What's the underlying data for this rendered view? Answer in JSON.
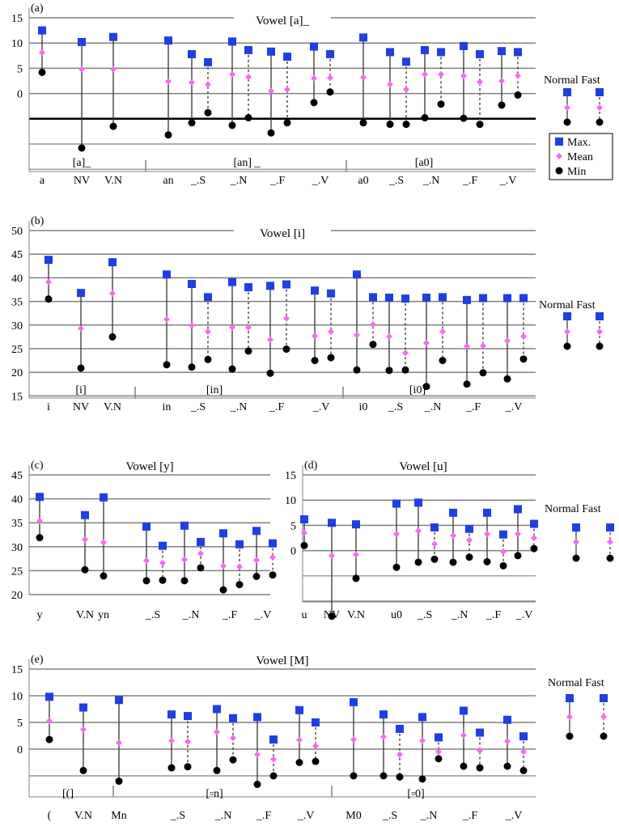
{
  "chart_data": [
    {
      "type": "range",
      "panel_label": "(a)",
      "title": "Vowel [a]_",
      "ylim": [
        -15,
        15
      ],
      "yticks": [
        15,
        10,
        5,
        0
      ],
      "categories": [
        "a",
        "NV",
        "V.N",
        "an",
        "_.S",
        "_.N",
        "_.F",
        "_.V",
        "a0",
        "_.S",
        "_.N",
        "_.F",
        "_.V"
      ],
      "group_labels": [
        "[a]_",
        "[an] _",
        "[a0]"
      ],
      "series": [
        {
          "name": "Normal",
          "max": [
            12.5,
            10.2,
            11.2,
            10.5,
            7.8,
            10.3,
            8.3,
            9.3,
            11.1,
            8.2,
            8.6,
            9.4,
            8.4
          ],
          "mean": [
            8.1,
            4.8,
            4.8,
            2.4,
            2.2,
            3.8,
            0.5,
            3.0,
            3.2,
            1.8,
            3.8,
            3.5,
            2.5
          ],
          "min": [
            4.2,
            -10.8,
            -6.5,
            -8.2,
            -5.8,
            -6.3,
            -7.8,
            -1.8,
            -5.8,
            -6.1,
            -4.8,
            -4.9,
            -2.3
          ]
        },
        {
          "name": "Fast",
          "max": [
            null,
            null,
            null,
            null,
            6.2,
            8.6,
            7.3,
            7.8,
            null,
            6.3,
            8.2,
            7.8,
            8.2
          ],
          "mean": [
            null,
            null,
            null,
            null,
            1.8,
            3.3,
            0.8,
            3.1,
            null,
            0.8,
            3.8,
            2.3,
            3.5
          ],
          "min": [
            null,
            null,
            null,
            null,
            -3.8,
            -4.8,
            -5.8,
            0.3,
            null,
            -6.1,
            -2.1,
            -6.1,
            -0.3
          ]
        }
      ],
      "legend": {
        "items": [
          "Max.",
          "Mean",
          "Min"
        ],
        "series_labels": [
          "Normal",
          "Fast"
        ],
        "demo": {
          "max": 0.5,
          "mean": -2.7,
          "min": -5.6
        }
      }
    },
    {
      "type": "range",
      "panel_label": "(b)",
      "title": "Vowel [i]",
      "ylim": [
        15,
        50
      ],
      "yticks": [
        50,
        45,
        40,
        35,
        30,
        25,
        20,
        15
      ],
      "categories": [
        "i",
        "NV",
        "V.N",
        "in",
        "_.S",
        "_.N",
        "_.F",
        "_.V",
        "i0",
        "_.S",
        "_.N",
        "_.F",
        "_.V"
      ],
      "group_labels": [
        "[i]",
        "[in]",
        "[i0]"
      ],
      "series": [
        {
          "name": "Normal",
          "max": [
            43.8,
            36.8,
            43.3,
            40.7,
            38.7,
            39.1,
            38.3,
            37.3,
            40.7,
            35.8,
            35.8,
            35.3,
            35.7
          ],
          "mean": [
            39.1,
            29.3,
            36.7,
            31.2,
            29.9,
            29.5,
            26.9,
            27.7,
            27.9,
            27.6,
            26.2,
            25.5,
            26.7
          ],
          "min": [
            35.5,
            20.9,
            27.5,
            21.6,
            21.1,
            20.7,
            19.8,
            22.5,
            20.5,
            20.4,
            17.0,
            17.5,
            18.6
          ]
        },
        {
          "name": "Fast",
          "max": [
            null,
            null,
            null,
            null,
            35.9,
            38.0,
            38.6,
            36.7,
            35.9,
            35.6,
            35.9,
            35.7,
            35.7
          ],
          "mean": [
            null,
            null,
            null,
            null,
            28.6,
            29.5,
            31.4,
            28.6,
            30.1,
            24.1,
            28.6,
            25.6,
            27.6
          ],
          "min": [
            null,
            null,
            null,
            null,
            22.7,
            24.5,
            24.9,
            23.1,
            25.9,
            20.5,
            22.5,
            19.9,
            22.8
          ]
        }
      ],
      "legend": {
        "items": [],
        "series_labels": [
          "Normal",
          "Fast"
        ],
        "demo": {
          "max": 32.6,
          "mean": 29.1,
          "min": 25.9
        }
      }
    },
    {
      "type": "range",
      "panel_label": "(c)",
      "title": "Vowel [y]",
      "ylim": [
        20,
        45
      ],
      "yticks": [
        45,
        40,
        35,
        30,
        25,
        20
      ],
      "categories": [
        "y",
        "V.N",
        "yn",
        "_.S",
        "_.N",
        "_.F",
        "_.V"
      ],
      "group_labels": [],
      "series": [
        {
          "name": "Normal",
          "max": [
            40.4,
            36.6,
            40.3,
            34.2,
            34.4,
            32.8,
            33.3
          ],
          "mean": [
            35.4,
            31.5,
            30.9,
            27.1,
            27.3,
            26.0,
            27.2
          ],
          "min": [
            31.9,
            25.2,
            23.9,
            22.9,
            22.9,
            21.0,
            23.8
          ]
        },
        {
          "name": "Fast",
          "max": [
            null,
            null,
            null,
            30.2,
            31.0,
            30.5,
            30.7
          ],
          "mean": [
            null,
            null,
            null,
            26.6,
            28.6,
            25.8,
            27.8
          ],
          "min": [
            null,
            null,
            null,
            23.0,
            25.6,
            22.1,
            24.1
          ]
        }
      ],
      "legend": null
    },
    {
      "type": "range",
      "panel_label": "(d)",
      "title": "Vowel [u]",
      "ylim": [
        -15,
        15
      ],
      "yticks": [
        15,
        10,
        5,
        0
      ],
      "categories": [
        "u",
        "NV",
        "V.N",
        "u0",
        "_.S",
        "_.N",
        "_.F",
        "_.V"
      ],
      "group_labels": [],
      "series": [
        {
          "name": "Normal",
          "max": [
            6.2,
            5.5,
            5.2,
            9.3,
            9.5,
            7.5,
            7.5,
            8.2
          ],
          "mean": [
            3.5,
            -1.0,
            -0.8,
            3.3,
            3.9,
            3.0,
            3.3,
            3.3
          ],
          "min": [
            1.0,
            -13.0,
            -5.5,
            -3.3,
            -2.3,
            -2.3,
            -2.2,
            -1.0
          ]
        },
        {
          "name": "Fast",
          "max": [
            null,
            null,
            null,
            null,
            4.6,
            4.3,
            3.2,
            5.3
          ],
          "mean": [
            null,
            null,
            null,
            null,
            1.3,
            2.1,
            -0.2,
            2.5
          ],
          "min": [
            null,
            null,
            null,
            null,
            -1.7,
            -1.3,
            -3.0,
            0.4
          ]
        }
      ],
      "legend": {
        "items": [],
        "series_labels": [
          "Normal Fast"
        ],
        "demo": {
          "max": 4.3,
          "mean": 1.3,
          "min": -1.7
        }
      }
    },
    {
      "type": "range",
      "panel_label": "(e)",
      "title": "Vowel [M]",
      "ylim": [
        -15,
        15
      ],
      "yticks": [
        15,
        10,
        5,
        0
      ],
      "categories": [
        "(",
        "V.N",
        "Mn",
        "_.S",
        "_.N",
        "_.F",
        "_.V",
        "M0",
        "_.S",
        "_.N",
        "_.F",
        "_.V"
      ],
      "group_labels": [
        "[(]",
        "[▫n]",
        "[▫0]"
      ],
      "series": [
        {
          "name": "Normal",
          "max": [
            9.8,
            7.8,
            9.2,
            6.5,
            7.5,
            6.0,
            7.3,
            8.8,
            6.5,
            6.0,
            7.2,
            5.5
          ],
          "mean": [
            5.3,
            3.7,
            1.2,
            1.6,
            3.2,
            -1.0,
            1.7,
            1.8,
            2.3,
            1.6,
            2.6,
            1.5
          ],
          "min": [
            1.8,
            -4.0,
            -6.0,
            -3.5,
            -4.0,
            -6.6,
            -2.5,
            -5.0,
            -5.0,
            -5.6,
            -3.2,
            -3.2
          ]
        },
        {
          "name": "Fast",
          "max": [
            null,
            null,
            null,
            6.2,
            5.8,
            1.8,
            5.0,
            null,
            3.8,
            2.2,
            3.1,
            2.4
          ],
          "mean": [
            null,
            null,
            null,
            1.4,
            2.1,
            -1.9,
            0.6,
            null,
            -1.0,
            -0.5,
            -0.3,
            -0.5
          ],
          "min": [
            null,
            null,
            null,
            -3.3,
            -2.0,
            -5.0,
            -2.3,
            null,
            -5.2,
            -1.8,
            -3.5,
            -4.0
          ]
        }
      ],
      "legend": {
        "items": [],
        "series_labels": [
          "Normal Fast"
        ],
        "demo": {
          "max": 5.4,
          "mean": 1.9,
          "min": -1.8
        }
      }
    }
  ],
  "colors": {
    "max": "#1f3fe0",
    "mean": "#f26cf2",
    "min": "#000000",
    "grid": "#808080",
    "baseline": "#000000"
  },
  "markers": {
    "max": "square",
    "mean": "diamond",
    "min": "circle"
  }
}
